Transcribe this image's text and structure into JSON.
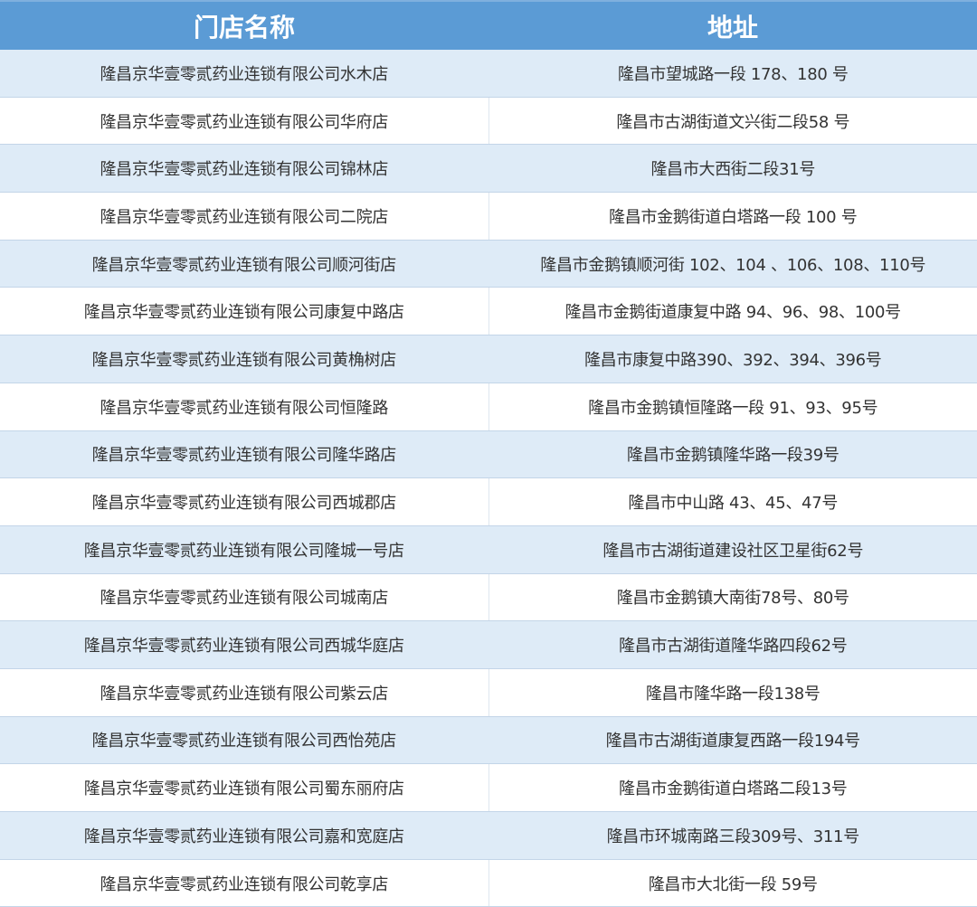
{
  "table": {
    "headers": [
      "门店名称",
      "地址"
    ],
    "header_color": "#5b9bd5",
    "stripe_color": "#deebf7",
    "rows": [
      [
        "隆昌京华壹零贰药业连锁有限公司水木店",
        "隆昌市望城路一段 178、180 号"
      ],
      [
        "隆昌京华壹零贰药业连锁有限公司华府店",
        "隆昌市古湖街道文兴街二段58 号"
      ],
      [
        "隆昌京华壹零贰药业连锁有限公司锦林店",
        "隆昌市大西街二段31号"
      ],
      [
        "隆昌京华壹零贰药业连锁有限公司二院店",
        "隆昌市金鹅街道白塔路一段 100 号"
      ],
      [
        "隆昌京华壹零贰药业连锁有限公司顺河街店",
        "隆昌市金鹅镇顺河街 102、104 、106、108、110号"
      ],
      [
        "隆昌京华壹零贰药业连锁有限公司康复中路店",
        "隆昌市金鹅街道康复中路 94、96、98、100号"
      ],
      [
        "隆昌京华壹零贰药业连锁有限公司黄桷树店",
        "隆昌市康复中路390、392、394、396号"
      ],
      [
        "隆昌京华壹零贰药业连锁有限公司恒隆路",
        "隆昌市金鹅镇恒隆路一段 91、93、95号"
      ],
      [
        "隆昌京华壹零贰药业连锁有限公司隆华路店",
        "隆昌市金鹅镇隆华路一段39号"
      ],
      [
        "隆昌京华壹零贰药业连锁有限公司西城郡店",
        "隆昌市中山路 43、45、47号"
      ],
      [
        "隆昌京华壹零贰药业连锁有限公司隆城一号店",
        "隆昌市古湖街道建设社区卫星街62号"
      ],
      [
        "隆昌京华壹零贰药业连锁有限公司城南店",
        "隆昌市金鹅镇大南街78号、80号"
      ],
      [
        "隆昌京华壹零贰药业连锁有限公司西城华庭店",
        "隆昌市古湖街道隆华路四段62号"
      ],
      [
        "隆昌京华壹零贰药业连锁有限公司紫云店",
        "隆昌市隆华路一段138号"
      ],
      [
        "隆昌京华壹零贰药业连锁有限公司西怡苑店",
        "隆昌市古湖街道康复西路一段194号"
      ],
      [
        "隆昌京华壹零贰药业连锁有限公司蜀东丽府店",
        "隆昌市金鹅街道白塔路二段13号"
      ],
      [
        "隆昌京华壹零贰药业连锁有限公司嘉和宽庭店",
        "隆昌市环城南路三段309号、311号"
      ],
      [
        "隆昌京华壹零贰药业连锁有限公司乾享店",
        "隆昌市大北街一段 59号"
      ]
    ]
  }
}
